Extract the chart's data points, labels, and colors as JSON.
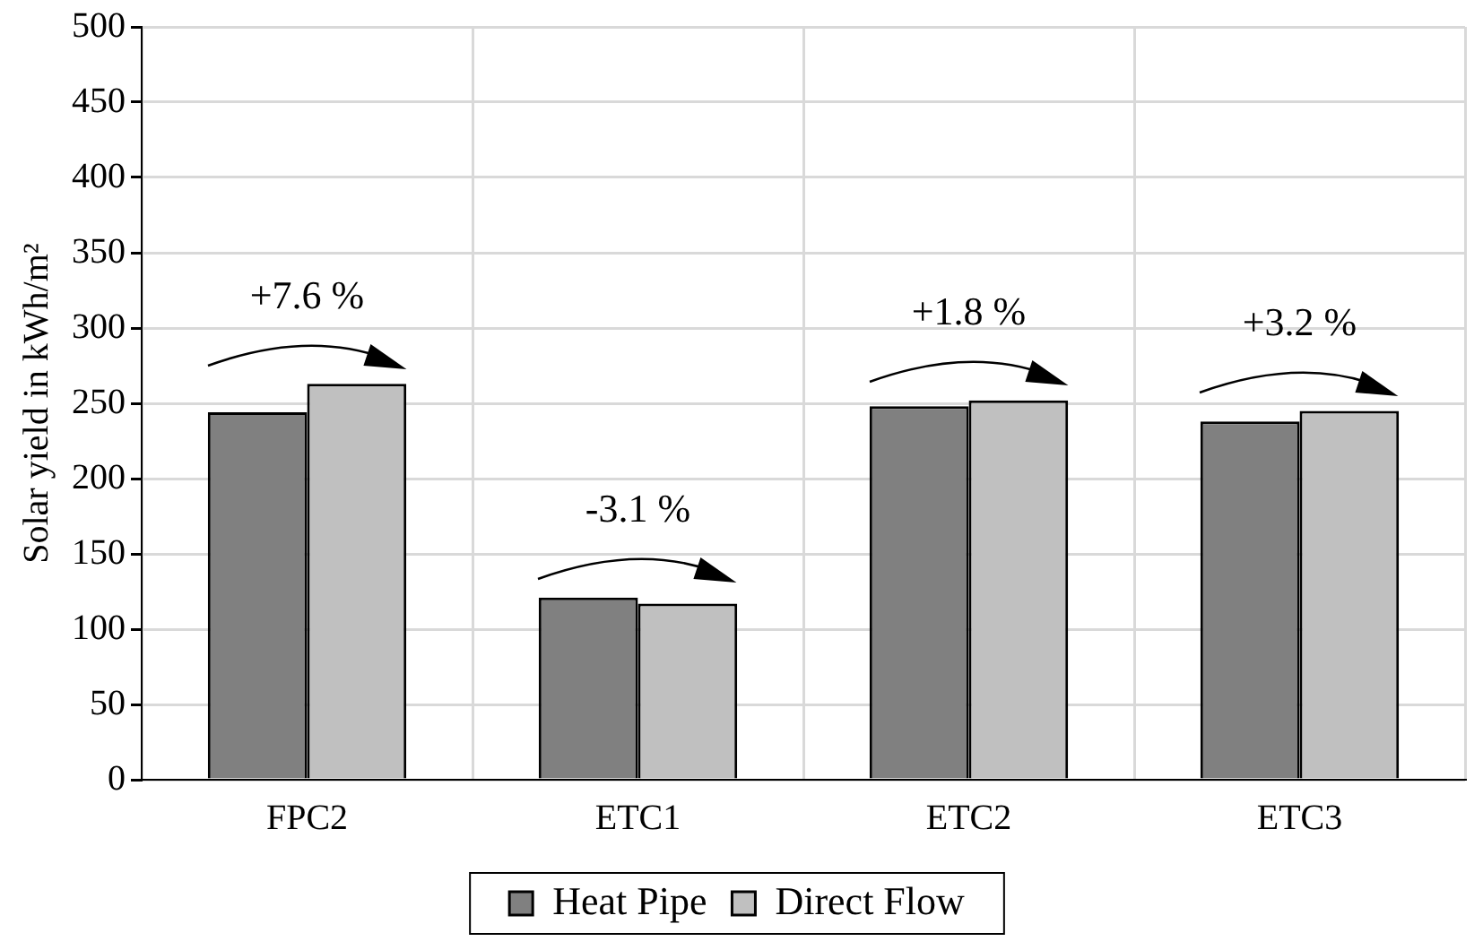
{
  "chart_data": {
    "type": "bar",
    "ylabel": "Solar yield in kWh/m²",
    "categories": [
      "FPC2",
      "ETC1",
      "ETC2",
      "ETC3"
    ],
    "series": [
      {
        "name": "Heat Pipe",
        "color": "#808080",
        "values": [
          244,
          121,
          248,
          238
        ]
      },
      {
        "name": "Direct Flow",
        "color": "#c0c0c0",
        "values": [
          263,
          117,
          252,
          245
        ]
      }
    ],
    "ylim": [
      0,
      500
    ],
    "yticks": [
      0,
      50,
      100,
      150,
      200,
      250,
      300,
      350,
      400,
      450,
      500
    ],
    "grid": true,
    "legend": "bottom",
    "annotations": [
      "+7.6 %",
      "-3.1 %",
      "+1.8 %",
      "+3.2 %"
    ]
  }
}
